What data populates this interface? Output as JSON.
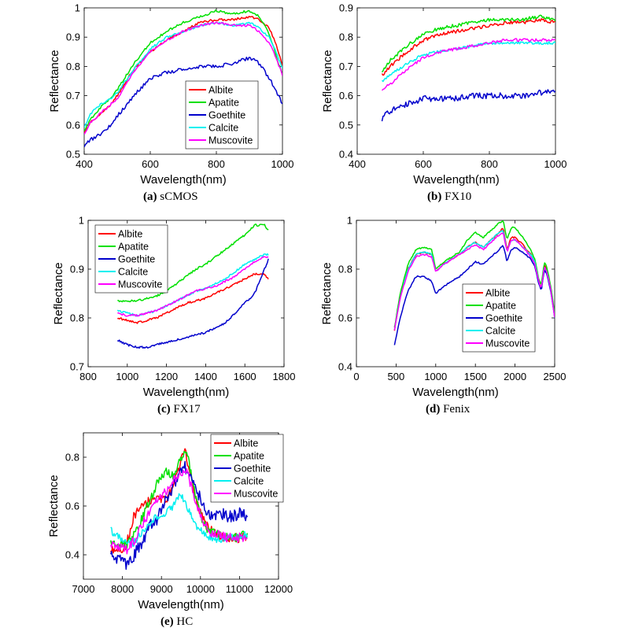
{
  "figure": {
    "captions": [
      {
        "label": "(a)",
        "text": "sCMOS"
      },
      {
        "label": "(b)",
        "text": "FX10"
      },
      {
        "label": "(c)",
        "text": "FX17"
      },
      {
        "label": "(d)",
        "text": "Fenix"
      },
      {
        "label": "(e)",
        "text": "HC"
      }
    ]
  },
  "colors": {
    "Albite": "#ff0000",
    "Apatite": "#00e000",
    "Goethite": "#0000cc",
    "Calcite": "#00f0f0",
    "Muscovite": "#ff00ff"
  },
  "chart_data": [
    {
      "type": "line",
      "id": "a",
      "caption": "sCMOS",
      "xlabel": "Wavelength(nm)",
      "ylabel": "Reflectance",
      "xlim": [
        400,
        1000
      ],
      "ylim": [
        0.5,
        1.0
      ],
      "xticks": [
        400,
        600,
        800,
        1000
      ],
      "yticks": [
        0.5,
        0.6,
        0.7,
        0.8,
        0.9,
        1
      ],
      "ytick_labels": [
        "0.5",
        "0.6",
        "0.7",
        "0.8",
        "0.9",
        "1"
      ],
      "legend_position": "center-right",
      "x": [
        400,
        420,
        450,
        480,
        500,
        550,
        600,
        650,
        700,
        750,
        800,
        850,
        900,
        930,
        960,
        980,
        1000
      ],
      "series": [
        {
          "name": "Albite",
          "noise": 0.004,
          "values": [
            0.57,
            0.61,
            0.64,
            0.67,
            0.7,
            0.79,
            0.85,
            0.89,
            0.92,
            0.95,
            0.96,
            0.96,
            0.97,
            0.96,
            0.93,
            0.88,
            0.8
          ]
        },
        {
          "name": "Apatite",
          "noise": 0.004,
          "values": [
            0.58,
            0.62,
            0.66,
            0.69,
            0.72,
            0.81,
            0.88,
            0.92,
            0.95,
            0.97,
            0.99,
            0.98,
            0.99,
            0.97,
            0.91,
            0.84,
            0.77
          ]
        },
        {
          "name": "Goethite",
          "noise": 0.006,
          "values": [
            0.53,
            0.55,
            0.57,
            0.6,
            0.63,
            0.7,
            0.76,
            0.78,
            0.79,
            0.8,
            0.8,
            0.81,
            0.83,
            0.81,
            0.76,
            0.72,
            0.67
          ]
        },
        {
          "name": "Calcite",
          "noise": 0.004,
          "values": [
            0.59,
            0.64,
            0.67,
            0.69,
            0.71,
            0.79,
            0.86,
            0.9,
            0.92,
            0.94,
            0.95,
            0.94,
            0.95,
            0.93,
            0.9,
            0.85,
            0.79
          ]
        },
        {
          "name": "Muscovite",
          "noise": 0.004,
          "values": [
            0.57,
            0.61,
            0.64,
            0.67,
            0.69,
            0.78,
            0.85,
            0.89,
            0.92,
            0.94,
            0.95,
            0.94,
            0.94,
            0.92,
            0.88,
            0.83,
            0.77
          ]
        }
      ]
    },
    {
      "type": "line",
      "id": "b",
      "caption": "FX10",
      "xlabel": "Wavelength(nm)",
      "ylabel": "Reflectance",
      "xlim": [
        400,
        1000
      ],
      "ylim": [
        0.4,
        0.9
      ],
      "xticks": [
        400,
        600,
        800,
        1000
      ],
      "yticks": [
        0.4,
        0.5,
        0.6,
        0.7,
        0.8,
        0.9
      ],
      "ytick_labels": [
        "0.4",
        "0.5",
        "0.6",
        "0.7",
        "0.8",
        "0.9"
      ],
      "legend_position": "none",
      "x": [
        475,
        500,
        550,
        600,
        650,
        700,
        750,
        800,
        850,
        900,
        950,
        1000
      ],
      "series": [
        {
          "name": "Albite",
          "noise": 0.006,
          "values": [
            0.67,
            0.7,
            0.75,
            0.79,
            0.81,
            0.82,
            0.83,
            0.84,
            0.85,
            0.85,
            0.86,
            0.85
          ]
        },
        {
          "name": "Apatite",
          "noise": 0.006,
          "values": [
            0.68,
            0.72,
            0.77,
            0.81,
            0.83,
            0.84,
            0.85,
            0.86,
            0.86,
            0.86,
            0.87,
            0.86
          ]
        },
        {
          "name": "Goethite",
          "noise": 0.01,
          "values": [
            0.52,
            0.55,
            0.57,
            0.59,
            0.59,
            0.59,
            0.6,
            0.6,
            0.6,
            0.6,
            0.61,
            0.62
          ]
        },
        {
          "name": "Calcite",
          "noise": 0.005,
          "values": [
            0.65,
            0.67,
            0.71,
            0.74,
            0.75,
            0.76,
            0.77,
            0.78,
            0.78,
            0.78,
            0.78,
            0.78
          ]
        },
        {
          "name": "Muscovite",
          "noise": 0.005,
          "values": [
            0.62,
            0.64,
            0.69,
            0.73,
            0.75,
            0.76,
            0.77,
            0.78,
            0.79,
            0.79,
            0.79,
            0.79
          ]
        }
      ]
    },
    {
      "type": "line",
      "id": "c",
      "caption": "FX17",
      "xlabel": "Wavelength(nm)",
      "ylabel": "Reflectance",
      "xlim": [
        800,
        1800
      ],
      "ylim": [
        0.7,
        1.0
      ],
      "xticks": [
        800,
        1000,
        1200,
        1400,
        1600,
        1800
      ],
      "yticks": [
        0.7,
        0.8,
        0.9,
        1
      ],
      "ytick_labels": [
        "0.7",
        "0.8",
        "0.9",
        "1"
      ],
      "legend_position": "top-left",
      "x": [
        950,
        1000,
        1050,
        1100,
        1150,
        1200,
        1250,
        1300,
        1350,
        1400,
        1450,
        1500,
        1550,
        1600,
        1650,
        1700,
        1720
      ],
      "series": [
        {
          "name": "Albite",
          "noise": 0.002,
          "values": [
            0.8,
            0.795,
            0.79,
            0.795,
            0.8,
            0.81,
            0.82,
            0.83,
            0.835,
            0.84,
            0.85,
            0.86,
            0.87,
            0.88,
            0.89,
            0.89,
            0.88
          ]
        },
        {
          "name": "Apatite",
          "noise": 0.002,
          "values": [
            0.835,
            0.835,
            0.835,
            0.84,
            0.845,
            0.855,
            0.87,
            0.885,
            0.9,
            0.91,
            0.925,
            0.94,
            0.955,
            0.97,
            0.99,
            0.99,
            0.98
          ]
        },
        {
          "name": "Goethite",
          "noise": 0.002,
          "values": [
            0.755,
            0.745,
            0.74,
            0.74,
            0.745,
            0.75,
            0.755,
            0.76,
            0.765,
            0.77,
            0.78,
            0.79,
            0.81,
            0.83,
            0.85,
            0.9,
            0.92
          ]
        },
        {
          "name": "Calcite",
          "noise": 0.002,
          "values": [
            0.815,
            0.81,
            0.805,
            0.81,
            0.815,
            0.825,
            0.835,
            0.845,
            0.855,
            0.86,
            0.87,
            0.88,
            0.895,
            0.91,
            0.92,
            0.93,
            0.93
          ]
        },
        {
          "name": "Muscovite",
          "noise": 0.002,
          "values": [
            0.81,
            0.805,
            0.805,
            0.81,
            0.815,
            0.825,
            0.835,
            0.845,
            0.855,
            0.86,
            0.865,
            0.875,
            0.885,
            0.9,
            0.915,
            0.925,
            0.925
          ]
        }
      ]
    },
    {
      "type": "line",
      "id": "d",
      "caption": "Fenix",
      "xlabel": "Wavelength(nm)",
      "ylabel": "Reflectance",
      "xlim": [
        0,
        2500
      ],
      "ylim": [
        0.4,
        1.0
      ],
      "xticks": [
        0,
        500,
        1000,
        1500,
        2000,
        2500
      ],
      "yticks": [
        0.4,
        0.6,
        0.8,
        1
      ],
      "ytick_labels": [
        "0.4",
        "0.6",
        "0.8",
        "1"
      ],
      "legend_position": "bottom-right",
      "x": [
        480,
        550,
        650,
        750,
        850,
        950,
        1000,
        1100,
        1200,
        1300,
        1400,
        1500,
        1600,
        1700,
        1800,
        1850,
        1900,
        1950,
        2000,
        2100,
        2200,
        2250,
        2300,
        2330,
        2370,
        2400,
        2450,
        2500
      ],
      "series": [
        {
          "name": "Albite",
          "noise": 0.003,
          "values": [
            0.55,
            0.68,
            0.8,
            0.86,
            0.87,
            0.86,
            0.79,
            0.82,
            0.84,
            0.86,
            0.89,
            0.91,
            0.89,
            0.92,
            0.95,
            0.97,
            0.88,
            0.93,
            0.93,
            0.9,
            0.86,
            0.83,
            0.75,
            0.72,
            0.82,
            0.8,
            0.72,
            0.61
          ]
        },
        {
          "name": "Apatite",
          "noise": 0.003,
          "values": [
            0.56,
            0.7,
            0.82,
            0.88,
            0.89,
            0.88,
            0.8,
            0.83,
            0.85,
            0.87,
            0.92,
            0.95,
            0.93,
            0.96,
            0.99,
            1.0,
            0.92,
            0.97,
            0.97,
            0.93,
            0.88,
            0.84,
            0.76,
            0.73,
            0.83,
            0.81,
            0.73,
            0.62
          ]
        },
        {
          "name": "Goethite",
          "noise": 0.003,
          "values": [
            0.49,
            0.6,
            0.71,
            0.77,
            0.77,
            0.75,
            0.7,
            0.73,
            0.75,
            0.77,
            0.8,
            0.83,
            0.82,
            0.85,
            0.88,
            0.9,
            0.83,
            0.88,
            0.89,
            0.87,
            0.84,
            0.81,
            0.74,
            0.71,
            0.8,
            0.78,
            0.71,
            0.6
          ]
        },
        {
          "name": "Calcite",
          "noise": 0.003,
          "values": [
            0.55,
            0.68,
            0.8,
            0.86,
            0.87,
            0.86,
            0.79,
            0.82,
            0.84,
            0.86,
            0.89,
            0.91,
            0.89,
            0.92,
            0.95,
            0.96,
            0.87,
            0.92,
            0.92,
            0.89,
            0.86,
            0.83,
            0.75,
            0.72,
            0.81,
            0.79,
            0.72,
            0.6
          ]
        },
        {
          "name": "Muscovite",
          "noise": 0.003,
          "values": [
            0.55,
            0.68,
            0.79,
            0.85,
            0.86,
            0.85,
            0.79,
            0.82,
            0.84,
            0.86,
            0.88,
            0.9,
            0.88,
            0.91,
            0.94,
            0.95,
            0.87,
            0.92,
            0.92,
            0.89,
            0.85,
            0.82,
            0.75,
            0.72,
            0.81,
            0.79,
            0.72,
            0.6
          ]
        }
      ]
    },
    {
      "type": "line",
      "id": "e",
      "caption": "HC",
      "xlabel": "Wavelength(nm)",
      "ylabel": "Reflectance",
      "xlim": [
        7000,
        12000
      ],
      "ylim": [
        0.3,
        0.9
      ],
      "xticks": [
        7000,
        8000,
        9000,
        10000,
        11000,
        12000
      ],
      "yticks": [
        0.4,
        0.6,
        0.8
      ],
      "ytick_labels": [
        "0.4",
        "0.6",
        "0.8"
      ],
      "legend_position": "top-right",
      "x": [
        7700,
        7900,
        8100,
        8300,
        8500,
        8700,
        8900,
        9100,
        9300,
        9500,
        9600,
        9700,
        9900,
        10100,
        10300,
        10500,
        10700,
        10900,
        11100,
        11200
      ],
      "series": [
        {
          "name": "Albite",
          "noise": 0.02,
          "values": [
            0.43,
            0.42,
            0.44,
            0.56,
            0.6,
            0.62,
            0.63,
            0.62,
            0.68,
            0.78,
            0.83,
            0.76,
            0.62,
            0.53,
            0.5,
            0.48,
            0.47,
            0.47,
            0.47,
            0.47
          ]
        },
        {
          "name": "Apatite",
          "noise": 0.018,
          "values": [
            0.45,
            0.44,
            0.44,
            0.48,
            0.55,
            0.62,
            0.7,
            0.74,
            0.72,
            0.8,
            0.83,
            0.78,
            0.62,
            0.52,
            0.49,
            0.48,
            0.47,
            0.47,
            0.48,
            0.48
          ]
        },
        {
          "name": "Goethite",
          "noise": 0.025,
          "values": [
            0.41,
            0.38,
            0.36,
            0.4,
            0.45,
            0.52,
            0.55,
            0.62,
            0.68,
            0.76,
            0.76,
            0.73,
            0.66,
            0.6,
            0.55,
            0.57,
            0.56,
            0.56,
            0.58,
            0.53
          ]
        },
        {
          "name": "Calcite",
          "noise": 0.015,
          "values": [
            0.5,
            0.47,
            0.45,
            0.45,
            0.49,
            0.53,
            0.56,
            0.57,
            0.6,
            0.65,
            0.62,
            0.58,
            0.52,
            0.48,
            0.47,
            0.46,
            0.47,
            0.47,
            0.48,
            0.48
          ]
        },
        {
          "name": "Muscovite",
          "noise": 0.02,
          "values": [
            0.44,
            0.43,
            0.42,
            0.46,
            0.52,
            0.58,
            0.63,
            0.66,
            0.7,
            0.74,
            0.75,
            0.72,
            0.6,
            0.52,
            0.49,
            0.48,
            0.47,
            0.47,
            0.47,
            0.47
          ]
        }
      ]
    }
  ]
}
